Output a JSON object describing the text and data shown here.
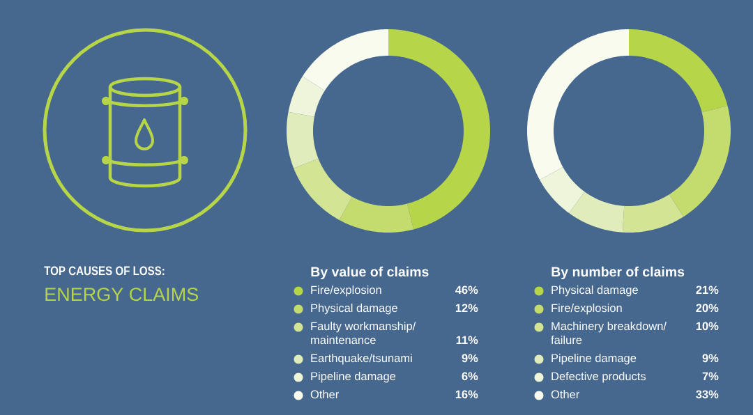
{
  "chart_data": [
    {
      "type": "other",
      "title": "TOP CAUSES OF LOSS:",
      "subtitle": "ENERGY CLAIMS"
    },
    {
      "type": "donut",
      "title": "By value of claims",
      "categories": [
        "Fire/explosion",
        "Physical damage",
        "Faulty workmanship/ maintenance",
        "Earthquake/tsunami",
        "Pipeline damage",
        "Other"
      ],
      "values": [
        46,
        12,
        11,
        9,
        6,
        16
      ],
      "value_labels": [
        "46%",
        "12%",
        "11%",
        "9%",
        "6%",
        "16%"
      ],
      "colors": [
        "#b6d548",
        "#c4dc6d",
        "#d3e595",
        "#e0ecb9",
        "#eef5da",
        "#f8fbee"
      ],
      "legend": "bottom"
    },
    {
      "type": "donut",
      "title": "By number of claims",
      "categories": [
        "Physical damage",
        "Fire/explosion",
        "Machinery breakdown/ failure",
        "Pipeline damage",
        "Defective products",
        "Other"
      ],
      "values": [
        21,
        20,
        10,
        9,
        7,
        33
      ],
      "value_labels": [
        "21%",
        "20%",
        "10%",
        "9%",
        "7%",
        "33%"
      ],
      "colors": [
        "#b6d548",
        "#c4dc6d",
        "#d3e595",
        "#e0ecb9",
        "#eef5da",
        "#f8fbee"
      ],
      "legend": "bottom"
    }
  ]
}
